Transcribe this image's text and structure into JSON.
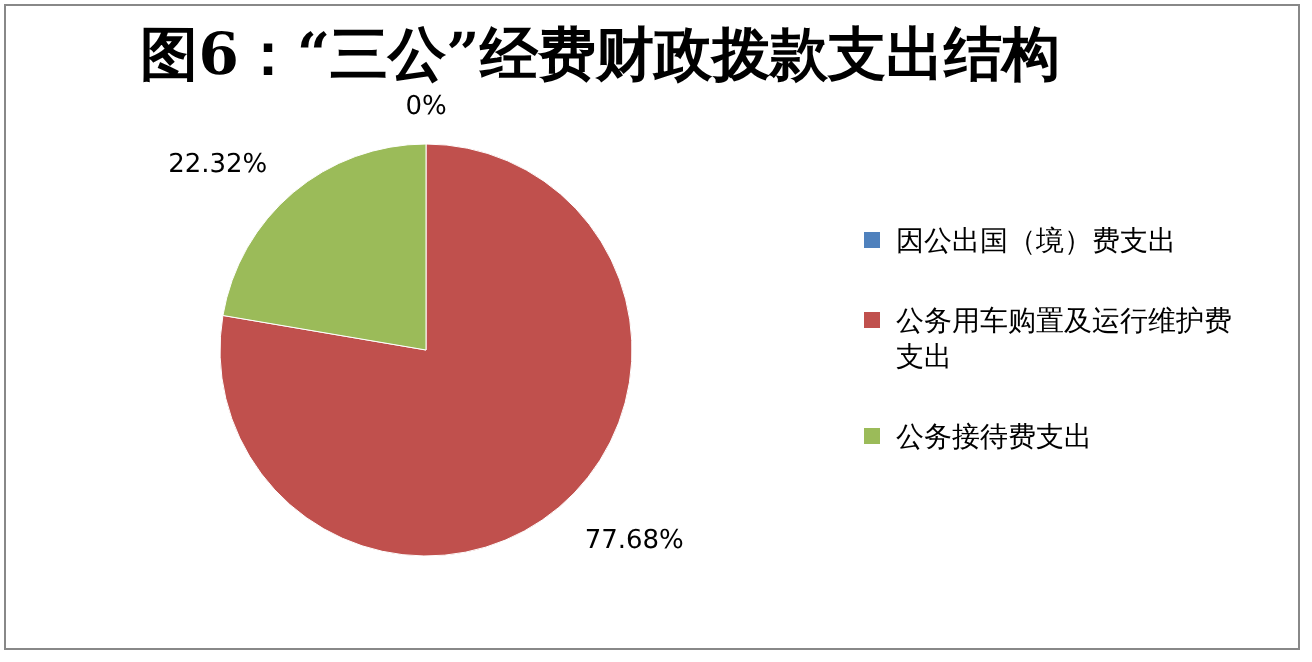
{
  "chart_data": {
    "type": "pie",
    "title": "图6：“三公”经费财政拨款支出结构",
    "categories": [
      "因公出国（境）费支出",
      "公务用车购置及运行维护费支出",
      "公务接待费支出"
    ],
    "values": [
      0,
      77.68,
      22.32
    ],
    "colors": [
      "#4f81bd",
      "#c0504d",
      "#9bbb59"
    ],
    "value_labels": [
      "0%",
      "77.68%",
      "22.32%"
    ],
    "legend": "right"
  }
}
